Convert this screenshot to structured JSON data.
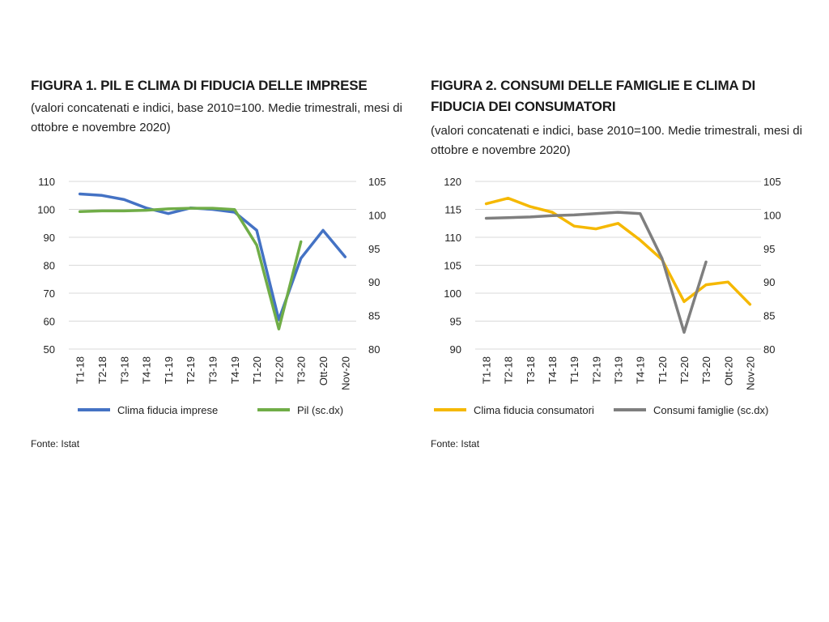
{
  "figures": [
    {
      "title": "FIGURA 1. PIL E CLIMA DI FIDUCIA DELLE IMPRESE",
      "subtitle": "(valori concatenati e indici, base 2010=100. Medie trimestrali, mesi di ottobre e novembre 2020)",
      "source": "Fonte: Istat"
    },
    {
      "title": "FIGURA 2. CONSUMI DELLE FAMIGLIE E CLIMA DI FIDUCIA DEI CONSUMATORI",
      "subtitle": "(valori concatenati e indici, base 2010=100. Medie trimestrali, mesi di ottobre e novembre 2020)",
      "source": "Fonte: Istat"
    }
  ],
  "chart_data": [
    {
      "type": "line",
      "categories": [
        "T1-18",
        "T2-18",
        "T3-18",
        "T4-18",
        "T1-19",
        "T2-19",
        "T3-19",
        "T4-19",
        "T1-20",
        "T2-20",
        "T3-20",
        "Ott-20",
        "Nov-20"
      ],
      "ylim_left": [
        50,
        110
      ],
      "yticks_left": [
        50,
        60,
        70,
        80,
        90,
        100,
        110
      ],
      "ylim_right": [
        80,
        105
      ],
      "yticks_right": [
        80,
        85,
        90,
        95,
        100,
        105
      ],
      "grid": true,
      "legend_position": "bottom",
      "series": [
        {
          "name": "Clima fiducia imprese",
          "axis": "left",
          "color": "#4472c4",
          "values": [
            105.5,
            105,
            103.5,
            100.5,
            98.5,
            100.5,
            100,
            99,
            92.5,
            60.5,
            82.5,
            92.5,
            83
          ]
        },
        {
          "name": "Pil (sc.dx)",
          "axis": "right",
          "color": "#70ad47",
          "values": [
            100.5,
            100.6,
            100.6,
            100.7,
            100.9,
            101,
            101,
            100.8,
            95.5,
            83,
            96,
            null,
            null
          ]
        }
      ]
    },
    {
      "type": "line",
      "categories": [
        "T1-18",
        "T2-18",
        "T3-18",
        "T4-18",
        "T1-19",
        "T2-19",
        "T3-19",
        "T4-19",
        "T1-20",
        "T2-20",
        "T3-20",
        "Ott-20",
        "Nov-20"
      ],
      "ylim_left": [
        90,
        120
      ],
      "yticks_left": [
        90,
        95,
        100,
        105,
        110,
        115,
        120
      ],
      "ylim_right": [
        80,
        105
      ],
      "yticks_right": [
        80,
        85,
        90,
        95,
        100,
        105
      ],
      "grid": true,
      "legend_position": "bottom",
      "series": [
        {
          "name": "Clima fiducia consumatori",
          "axis": "left",
          "color": "#f5b800",
          "values": [
            116,
            117,
            115.5,
            114.5,
            112,
            111.5,
            112.5,
            109.5,
            106,
            98.5,
            101.5,
            102,
            98
          ]
        },
        {
          "name": "Consumi famiglie (sc.dx)",
          "axis": "right",
          "color": "#7f7f7f",
          "values": [
            99.5,
            99.6,
            99.7,
            99.9,
            100,
            100.2,
            100.4,
            100.2,
            93.5,
            82.5,
            93,
            null,
            null
          ]
        }
      ]
    }
  ]
}
